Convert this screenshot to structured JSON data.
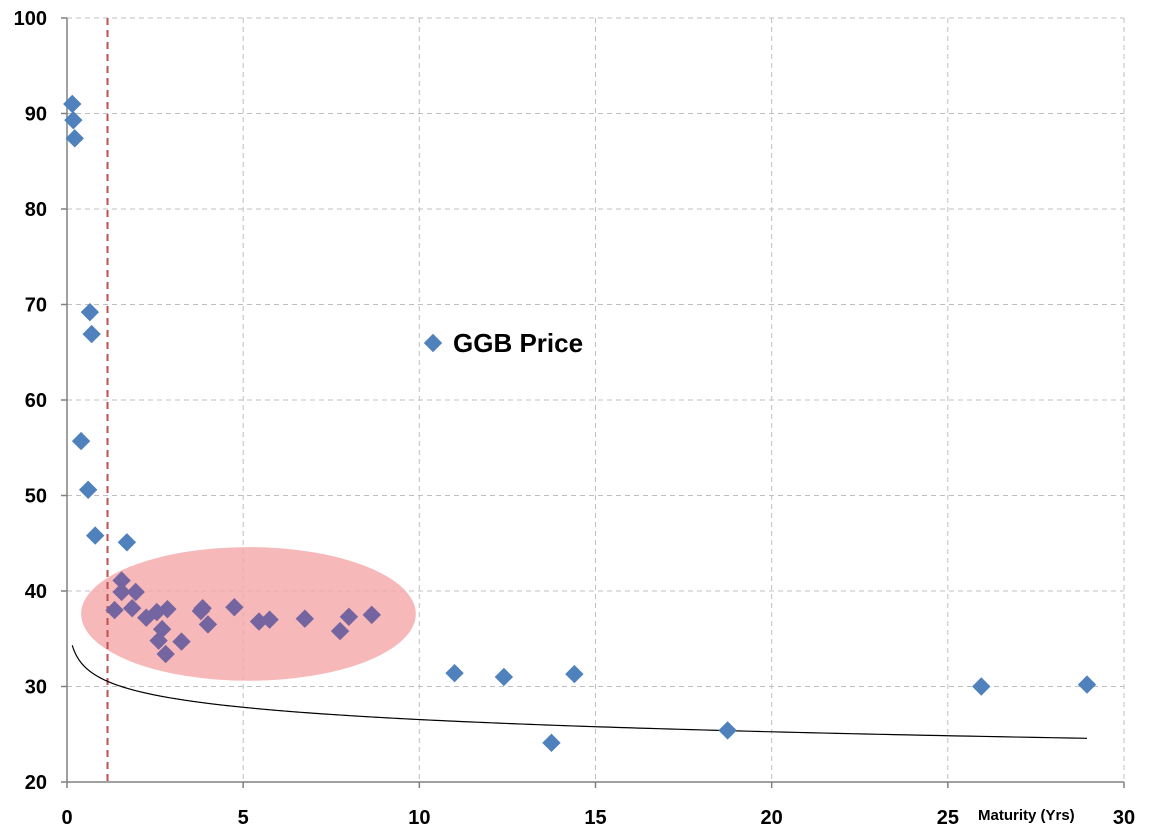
{
  "chart_data": {
    "type": "scatter",
    "xlabel": "Maturity (Yrs)",
    "ylabel": "",
    "xlim": [
      0,
      30
    ],
    "ylim": [
      20,
      100
    ],
    "x_ticks": [
      "0",
      "5",
      "10",
      "15",
      "20",
      "25",
      "30"
    ],
    "y_ticks": [
      "20",
      "30",
      "40",
      "50",
      "60",
      "70",
      "80",
      "90",
      "100"
    ],
    "grid": true,
    "legend_position": "center",
    "series": [
      {
        "name": "GGB Price",
        "color": "#4F81BD",
        "marker": "diamond",
        "points": [
          [
            0.15,
            91.0
          ],
          [
            0.18,
            89.3
          ],
          [
            0.22,
            87.4
          ],
          [
            0.65,
            69.2
          ],
          [
            0.7,
            66.9
          ],
          [
            0.4,
            55.7
          ],
          [
            0.6,
            50.6
          ],
          [
            0.8,
            45.8
          ],
          [
            1.7,
            45.1
          ],
          [
            1.35,
            38.0
          ],
          [
            1.55,
            41.1
          ],
          [
            1.55,
            39.9
          ],
          [
            1.85,
            38.2
          ],
          [
            1.95,
            39.9
          ],
          [
            2.25,
            37.2
          ],
          [
            2.55,
            37.8
          ],
          [
            2.7,
            36.0
          ],
          [
            2.6,
            34.8
          ],
          [
            2.8,
            33.4
          ],
          [
            2.85,
            38.1
          ],
          [
            3.25,
            34.7
          ],
          [
            3.8,
            37.9
          ],
          [
            3.85,
            38.2
          ],
          [
            4.0,
            36.5
          ],
          [
            4.75,
            38.3
          ],
          [
            5.45,
            36.8
          ],
          [
            5.75,
            37.0
          ],
          [
            6.75,
            37.1
          ],
          [
            7.75,
            35.8
          ],
          [
            8.0,
            37.3
          ],
          [
            8.65,
            37.5
          ],
          [
            11.0,
            31.4
          ],
          [
            12.4,
            31.0
          ],
          [
            13.75,
            24.1
          ],
          [
            14.4,
            31.3
          ],
          [
            18.75,
            25.4
          ],
          [
            25.95,
            30.0
          ],
          [
            28.95,
            30.2
          ]
        ]
      }
    ],
    "trendline": {
      "type": "logarithmic",
      "color": "#000000",
      "x_range": [
        0.15,
        28.95
      ],
      "a": 30.8,
      "b": -1.85
    },
    "reference_line": {
      "x": 1.15,
      "color": "#C0504D",
      "style": "dashed"
    },
    "highlight_region": {
      "shape": "ellipse",
      "color": "#F4A6A6",
      "cx": 5.15,
      "cy": 37.6,
      "rx": 4.75,
      "ry": 7.0
    }
  }
}
